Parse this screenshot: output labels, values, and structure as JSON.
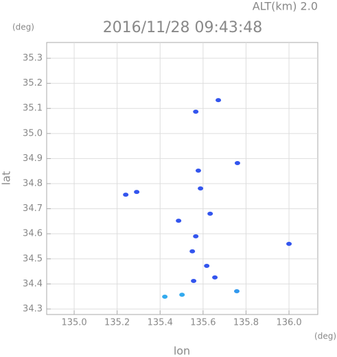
{
  "chart_data": {
    "type": "scatter",
    "title": "2016/11/28 09:43:48",
    "altitude_label": "ALT(km) 2.0",
    "y_unit": "(deg)",
    "x_unit": "(deg)",
    "x_label": "lon",
    "y_label": "lat",
    "xlim": [
      134.872,
      136.134
    ],
    "ylim": [
      34.278,
      35.363
    ],
    "xticks": [
      {
        "value": 135.0,
        "label": "135.0"
      },
      135.2,
      135.4,
      135.6,
      135.8,
      {
        "value": 136.0,
        "label": "136.0"
      }
    ],
    "yticks": [
      34.3,
      34.4,
      34.5,
      34.6,
      34.7,
      34.8,
      34.9,
      {
        "value": 35.0,
        "label": "35.0"
      },
      35.1,
      35.2,
      35.3
    ],
    "grid": true,
    "x": [
      135.671,
      135.566,
      135.76,
      135.578,
      135.588,
      135.24,
      135.291,
      135.486,
      135.633,
      135.566,
      135.55,
      135.617,
      135.655,
      135.556,
      135.757,
      136.0,
      135.422,
      135.502
    ],
    "y": [
      35.133,
      35.087,
      34.882,
      34.852,
      34.781,
      34.756,
      34.767,
      34.652,
      34.68,
      34.59,
      34.53,
      34.472,
      34.426,
      34.412,
      34.371,
      34.56,
      34.349,
      34.357
    ],
    "colors": [
      "#3355ee",
      "#3355ee",
      "#3355ee",
      "#3355ee",
      "#3355ee",
      "#3355ee",
      "#3355ee",
      "#3355ee",
      "#3355ee",
      "#3355ee",
      "#3355ee",
      "#3355ee",
      "#3355ee",
      "#3355ee",
      "#3399ee",
      "#3355ee",
      "#33aaee",
      "#33aaee"
    ]
  }
}
